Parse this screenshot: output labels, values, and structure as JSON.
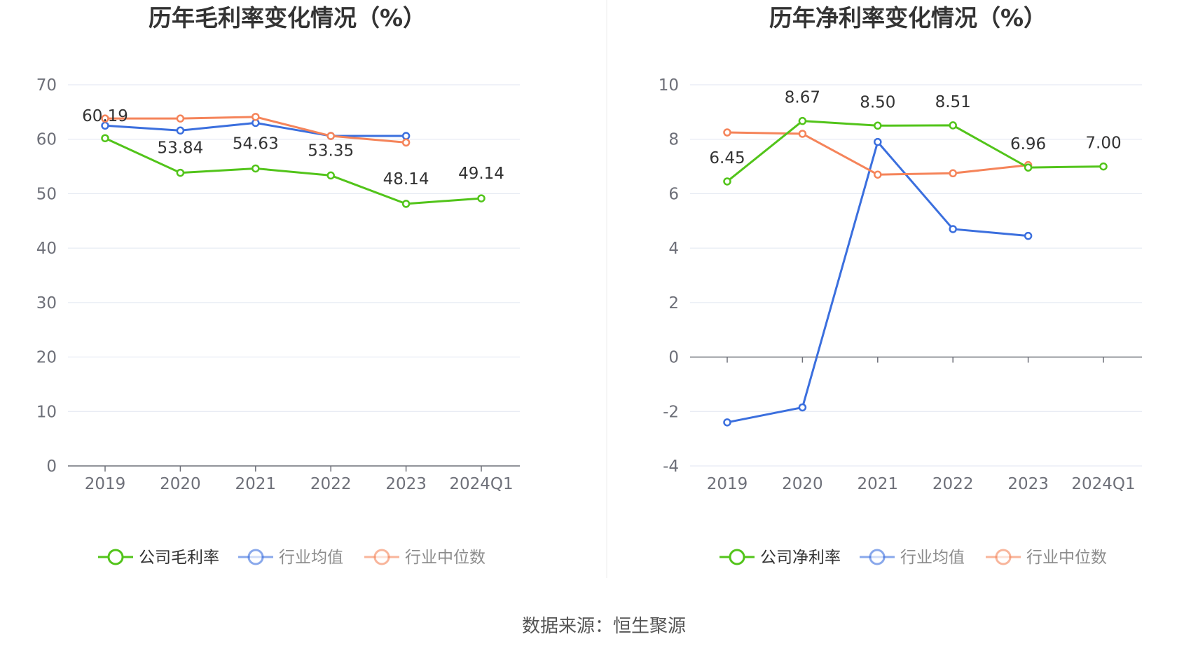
{
  "source_text": "数据来源：恒生聚源",
  "chart_data": [
    {
      "type": "line",
      "title": "历年毛利率变化情况（%）",
      "categories": [
        "2019",
        "2020",
        "2021",
        "2022",
        "2023",
        "2024Q1"
      ],
      "ylim": [
        0,
        70
      ],
      "yticks": [
        0,
        10,
        20,
        30,
        40,
        50,
        60,
        70
      ],
      "grid": true,
      "legend_position": "bottom",
      "series": [
        {
          "name": "公司毛利率",
          "color": "#52c41a",
          "values": [
            60.19,
            53.84,
            54.63,
            53.35,
            48.14,
            49.14
          ],
          "labels": [
            "60.19",
            "53.84",
            "54.63",
            "53.35",
            "48.14",
            "49.14"
          ]
        },
        {
          "name": "行业均值",
          "color": "#3b6fde",
          "values": [
            62.5,
            61.6,
            63.0,
            60.6,
            60.6,
            null
          ]
        },
        {
          "name": "行业中位数",
          "color": "#f5845a",
          "values": [
            63.8,
            63.8,
            64.1,
            60.6,
            59.4,
            null
          ]
        }
      ]
    },
    {
      "type": "line",
      "title": "历年净利率变化情况（%）",
      "categories": [
        "2019",
        "2020",
        "2021",
        "2022",
        "2023",
        "2024Q1"
      ],
      "ylim": [
        -4,
        10
      ],
      "yticks": [
        -4,
        -2,
        0,
        2,
        4,
        6,
        8,
        10
      ],
      "grid": true,
      "legend_position": "bottom",
      "series": [
        {
          "name": "公司净利率",
          "color": "#52c41a",
          "values": [
            6.45,
            8.67,
            8.5,
            8.51,
            6.96,
            7.0
          ],
          "labels": [
            "6.45",
            "8.67",
            "8.50",
            "8.51",
            "6.96",
            "7.00"
          ]
        },
        {
          "name": "行业均值",
          "color": "#3b6fde",
          "values": [
            -2.4,
            -1.85,
            7.9,
            4.7,
            4.45,
            null
          ]
        },
        {
          "name": "行业中位数",
          "color": "#f5845a",
          "values": [
            8.25,
            8.2,
            6.7,
            6.75,
            7.05,
            null
          ]
        }
      ]
    }
  ]
}
